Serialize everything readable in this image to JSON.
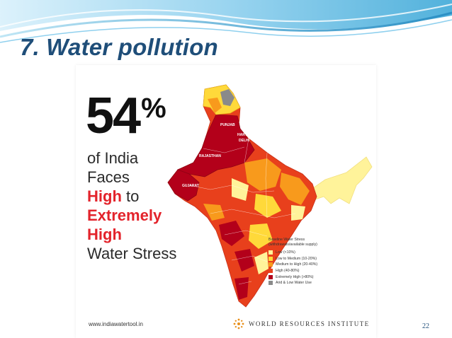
{
  "slide": {
    "title": "7. Water pollution",
    "page_number": "22"
  },
  "infographic": {
    "stat_number": "54",
    "stat_suffix": "%",
    "line1": "of India",
    "line2": "Faces",
    "line3_highlight": "High",
    "line3_rest": " to",
    "line4": "Extremely",
    "line5": "High",
    "line6": "Water Stress",
    "url": "www.indiawatertool.in",
    "org": "WORLD RESOURCES INSTITUTE"
  },
  "map": {
    "labels": {
      "punjab": "PUNJAB",
      "haryana": "HARYANA",
      "delhi": "DELHI",
      "rajasthan": "RAJASTHAN",
      "gujarat": "GUJARAT"
    }
  },
  "legend": {
    "title_line1": "Baseline Water Stress",
    "title_line2": "(withdrawals/available supply)",
    "items": [
      {
        "label": "Low (<10%)",
        "color": "#fff39a"
      },
      {
        "label": "Low to Medium (10-20%)",
        "color": "#ffd93a"
      },
      {
        "label": "Medium to High (20-40%)",
        "color": "#f89a1c"
      },
      {
        "label": "High (40-80%)",
        "color": "#e8401c"
      },
      {
        "label": "Extremely High (>80%)",
        "color": "#b3001a"
      },
      {
        "label": "Arid & Low Water Use",
        "color": "#8a8a8a"
      }
    ]
  },
  "colors": {
    "title": "#1f4e79",
    "highlight": "#e3232b",
    "wave_dark": "#3fa9d8",
    "wave_light": "#bfe6f5"
  }
}
